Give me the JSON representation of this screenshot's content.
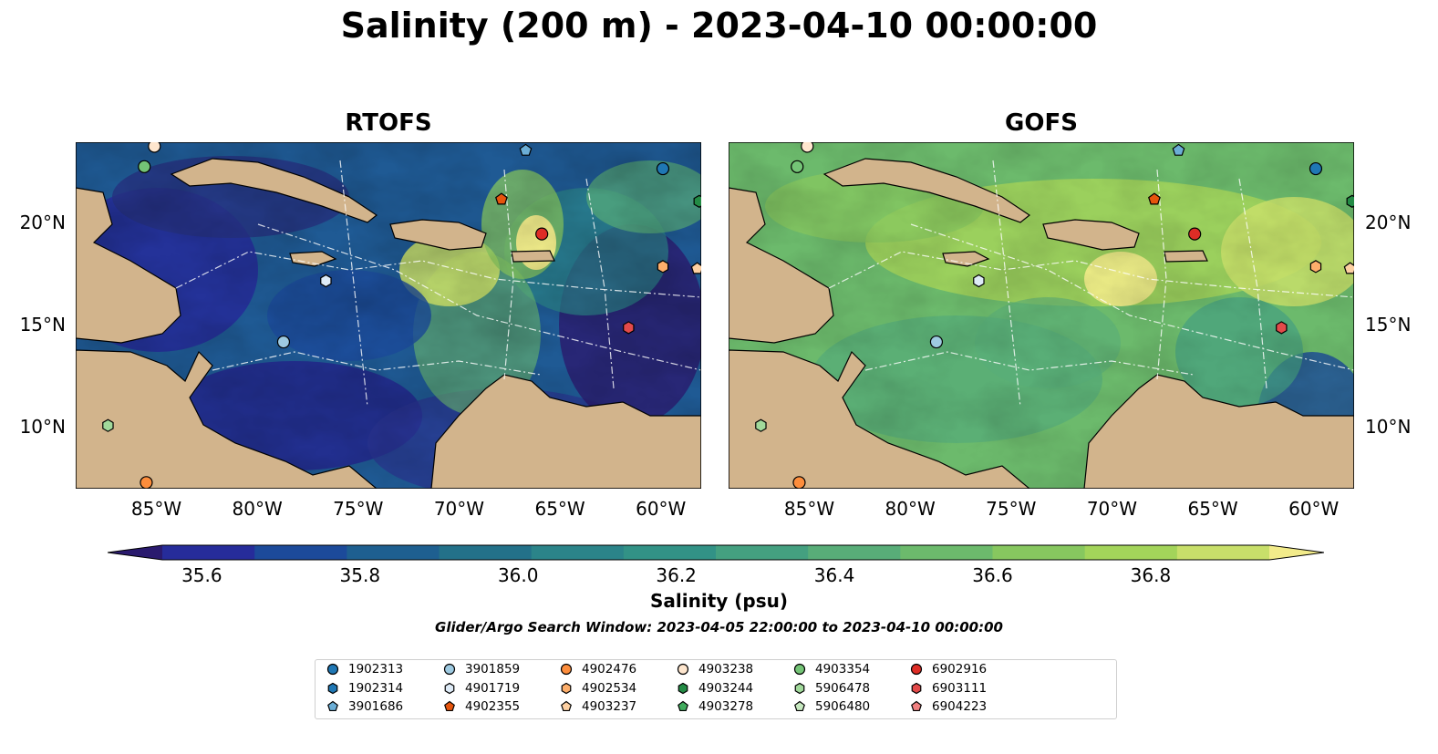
{
  "title": "Salinity (200 m) - 2023-04-10 00:00:00",
  "panels": [
    {
      "title": "RTOFS",
      "base": "#2ba089"
    },
    {
      "title": "GOFS",
      "base": "#7ccb6a"
    }
  ],
  "map": {
    "lon_range": [
      -89,
      -58
    ],
    "lat_range": [
      7,
      24
    ],
    "lon_ticks": [
      "85°W",
      "80°W",
      "75°W",
      "70°W",
      "65°W",
      "60°W"
    ],
    "lat_ticks": [
      "20°N",
      "15°N",
      "10°N"
    ],
    "land_color": "#d2b48c",
    "shelf_color": "#9ab7e0"
  },
  "colorbar": {
    "label": "Salinity (psu)",
    "ticks": [
      "35.6",
      "35.8",
      "36.0",
      "36.2",
      "36.4",
      "36.6",
      "36.8"
    ],
    "range": [
      35.55,
      36.95
    ],
    "colors": [
      "#2a1a6e",
      "#262c9a",
      "#1c4a9a",
      "#1e5f90",
      "#237189",
      "#2b8489",
      "#329286",
      "#44a080",
      "#58ad78",
      "#6cba6c",
      "#87c75f",
      "#a3d45a",
      "#c8df6a",
      "#f2eb8a"
    ]
  },
  "search_window": "Glider/Argo Search Window: 2023-04-05 22:00:00 to 2023-04-10 00:00:00",
  "legend": [
    {
      "id": "1902313",
      "color": "#1f77b4",
      "shape": "circle"
    },
    {
      "id": "1902314",
      "color": "#1f77b4",
      "shape": "hexagon"
    },
    {
      "id": "3901686",
      "color": "#6baed6",
      "shape": "pentagon"
    },
    {
      "id": "3901859",
      "color": "#9ecae1",
      "shape": "circle"
    },
    {
      "id": "4901719",
      "color": "#deebf7",
      "shape": "hexagon"
    },
    {
      "id": "4902355",
      "color": "#e6550d",
      "shape": "pentagon"
    },
    {
      "id": "4902476",
      "color": "#fd8d3c",
      "shape": "circle"
    },
    {
      "id": "4902534",
      "color": "#fdae6b",
      "shape": "hexagon"
    },
    {
      "id": "4903237",
      "color": "#fdd0a2",
      "shape": "pentagon"
    },
    {
      "id": "4903238",
      "color": "#fee6ce",
      "shape": "circle"
    },
    {
      "id": "4903244",
      "color": "#238b45",
      "shape": "hexagon"
    },
    {
      "id": "4903278",
      "color": "#41ab5d",
      "shape": "pentagon"
    },
    {
      "id": "4903354",
      "color": "#74c476",
      "shape": "circle"
    },
    {
      "id": "5906478",
      "color": "#a1d99b",
      "shape": "hexagon"
    },
    {
      "id": "5906480",
      "color": "#c7e9c0",
      "shape": "pentagon"
    },
    {
      "id": "6902916",
      "color": "#de2d26",
      "shape": "circle"
    },
    {
      "id": "6903111",
      "color": "#e34a4a",
      "shape": "hexagon"
    },
    {
      "id": "6904223",
      "color": "#f08080",
      "shape": "pentagon"
    }
  ],
  "floats": [
    {
      "id": "4903354",
      "lon": -85.6,
      "lat": 22.8
    },
    {
      "id": "4903238",
      "lon": -85.1,
      "lat": 23.8
    },
    {
      "id": "3901686",
      "lon": -66.7,
      "lat": 23.6
    },
    {
      "id": "1902313",
      "lon": -59.9,
      "lat": 22.7
    },
    {
      "id": "4903244",
      "lon": -58.1,
      "lat": 21.1
    },
    {
      "id": "4902355",
      "lon": -67.9,
      "lat": 21.2
    },
    {
      "id": "6902916",
      "lon": -65.9,
      "lat": 19.5
    },
    {
      "id": "4902534",
      "lon": -59.9,
      "lat": 17.9
    },
    {
      "id": "4903237",
      "lon": -58.2,
      "lat": 17.8
    },
    {
      "id": "4901719",
      "lon": -76.6,
      "lat": 17.2
    },
    {
      "id": "3901859",
      "lon": -78.7,
      "lat": 14.2
    },
    {
      "id": "6903111",
      "lon": -61.6,
      "lat": 14.9
    },
    {
      "id": "5906478",
      "lon": -87.4,
      "lat": 10.1
    },
    {
      "id": "4902476",
      "lon": -85.5,
      "lat": 7.3
    }
  ]
}
